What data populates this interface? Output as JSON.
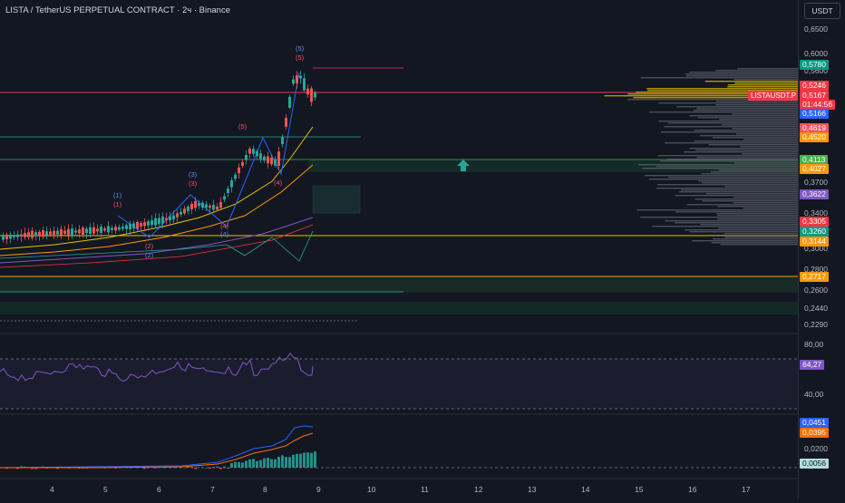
{
  "header": {
    "title": "LISTA / TetherUS PERPETUAL CONTRACT · 2ч · Binance",
    "currency_button": "USDT"
  },
  "symbol_tag": "LISTAUSDT.P",
  "price_scale": {
    "ticks": [
      "0,6500",
      "0,6000",
      "0,5600",
      "0,3700",
      "0,3400",
      "0,3000",
      "0,2800",
      "0,2600",
      "0,2440",
      "0,2290"
    ],
    "labels": [
      {
        "text": "0,5780",
        "color": "#089981"
      },
      {
        "text": "0,5246",
        "color": "#f23645"
      },
      {
        "text": "0,5167",
        "color": "#f23645"
      },
      {
        "text": "01:44:56",
        "color": "#f23645"
      },
      {
        "text": "0,5166",
        "color": "#2962ff"
      },
      {
        "text": "0,4619",
        "color": "#f7525f"
      },
      {
        "text": "0,4520",
        "color": "#ff9800"
      },
      {
        "text": "0,4113",
        "color": "#4caf50"
      },
      {
        "text": "0,4027",
        "color": "#ff9800"
      },
      {
        "text": "0,3622",
        "color": "#7e57c2"
      },
      {
        "text": "0,3305",
        "color": "#f23645"
      },
      {
        "text": "0,3260",
        "color": "#089981"
      },
      {
        "text": "0,3144",
        "color": "#ff9800"
      },
      {
        "text": "0,2717",
        "color": "#ff9800"
      }
    ]
  },
  "rsi_scale": {
    "ticks": [
      "80,00",
      "40,00"
    ],
    "label": {
      "text": "64,27",
      "color": "#7e57c2"
    }
  },
  "macd_scale": {
    "ticks": [
      "0,0200"
    ],
    "labels": [
      {
        "text": "0,0451",
        "color": "#2962ff"
      },
      {
        "text": "0,0395",
        "color": "#ff6d00"
      },
      {
        "text": "0,0056",
        "color": "#b2dfdb"
      }
    ]
  },
  "time_axis": [
    "4",
    "5",
    "6",
    "7",
    "8",
    "9",
    "10",
    "11",
    "12",
    "13",
    "14",
    "15",
    "16",
    "17"
  ],
  "wave_labels": {
    "one": "(1)",
    "two": "(2)",
    "three": "(3)",
    "four": "(4)",
    "five": "(5)"
  },
  "colors": {
    "background": "#131722",
    "up": "#26a69a",
    "down": "#ef5350",
    "rsi": "#7e57c2",
    "macd": "#2962ff",
    "signal": "#ff6d00"
  }
}
